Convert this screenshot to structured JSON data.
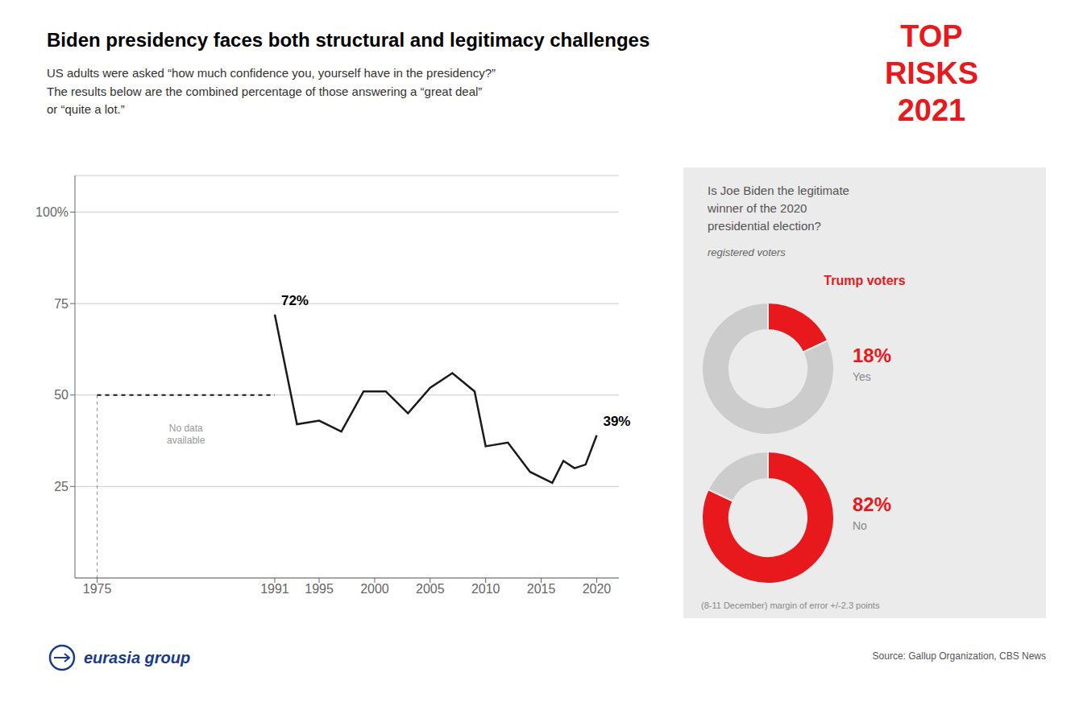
{
  "chart_data": [
    {
      "type": "line",
      "title": "Biden presidency faces both structural and legitimacy challenges",
      "subtitle": "US adults were asked “how much confidence you, yourself have in the presidency?”\nThe results below are the combined percentage of those answering a “great deal”\nor “quite a lot.”",
      "source": "Source: Gallup Organization, CBS News",
      "x": [
        1975,
        1991,
        1993,
        1995,
        1997,
        1999,
        2001,
        2003,
        2005,
        2007,
        2009,
        2010,
        2012,
        2014,
        2016,
        2017,
        2018,
        2019,
        2020
      ],
      "series": [
        {
          "color": "#1a1a1a",
          "line_style": "dashed",
          "values": [
            50,
            50,
            null,
            null,
            null,
            null,
            null,
            null,
            null,
            null,
            null,
            null,
            null,
            null,
            null,
            null,
            null,
            null,
            null
          ]
        },
        {
          "color": "#1a1a1a",
          "line_style": "solid",
          "values": [
            null,
            72,
            42,
            43,
            40,
            51,
            51,
            45,
            52,
            56,
            51,
            36,
            37,
            29,
            26,
            32,
            30,
            31,
            39
          ]
        }
      ],
      "xlim": [
        1973,
        2022
      ],
      "xticks": [
        1975,
        1991,
        1995,
        2000,
        2005,
        2010,
        2015,
        2020
      ],
      "ylim": [
        0,
        110
      ],
      "yticks": [
        25,
        50,
        75,
        {
          "value": 100,
          "label": "100%"
        }
      ],
      "grid": true,
      "annotations": [
        {
          "text": "72%",
          "x": 1991,
          "y": 72
        },
        {
          "text": "39%",
          "x": 2020,
          "y": 39
        },
        {
          "text": "No data\navailable",
          "x": 1983,
          "y": 40
        },
        {
          "text": "TOP",
          "color": "#e8191c"
        },
        {
          "text": "RISKS",
          "color": "#e8191c"
        },
        {
          "text": "2021",
          "color": "#e8191c"
        },
        {
          "text": "eurasia group",
          "color": "#1a3a8c"
        }
      ]
    },
    {
      "type": "pie",
      "title": "Is Joe Biden the legitimate\nwinner of the 2020\npresidential election?",
      "subtitle": "registered voters",
      "annotations": [
        {
          "text": "Trump voters",
          "color": "#e8191c"
        },
        {
          "text": "(8-11 December) margin of error +/-2.3 points"
        }
      ],
      "categories": [
        "Yes",
        null
      ],
      "values": [
        18,
        82
      ],
      "value_labels": [
        "18%",
        null
      ],
      "colors": [
        "#e8191c",
        "#cccccc"
      ]
    },
    {
      "type": "pie",
      "categories": [
        "No",
        null
      ],
      "values": [
        82,
        18
      ],
      "value_labels": [
        "82%",
        null
      ],
      "colors": [
        "#e8191c",
        "#cccccc"
      ]
    }
  ]
}
